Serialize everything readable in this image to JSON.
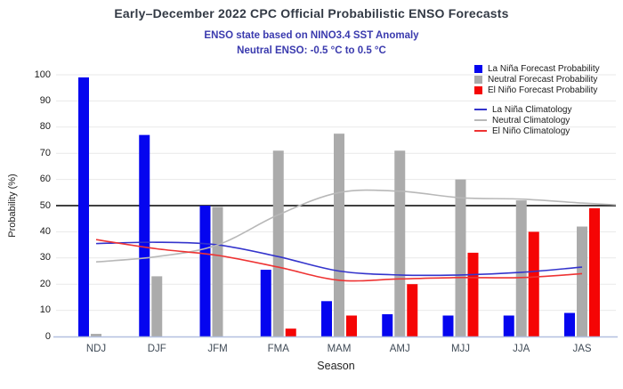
{
  "header": {
    "title": "Early–December 2022 CPC Official Probabilistic ENSO Forecasts",
    "subtitle1": "ENSO state based on NINO3.4 SST Anomaly",
    "subtitle2": "Neutral ENSO: -0.5 °C to 0.5 °C"
  },
  "chart_data": {
    "type": "bar",
    "title": "Early–December 2022 CPC Official Probabilistic ENSO Forecasts",
    "xlabel": "Season",
    "ylabel": "Probability (%)",
    "ylim": [
      0,
      100
    ],
    "yticks": [
      0,
      10,
      20,
      30,
      40,
      50,
      60,
      70,
      80,
      90,
      100
    ],
    "grid": "horizontal",
    "legend_position": "top-right",
    "reference_line": 50,
    "categories": [
      "NDJ",
      "DJF",
      "JFM",
      "FMA",
      "MAM",
      "AMJ",
      "MJJ",
      "JJA",
      "JAS"
    ],
    "bar_series": [
      {
        "name": "La Niña Forecast Probability",
        "color": "#0505ef",
        "values": [
          99,
          77,
          50,
          25.5,
          13.5,
          8.5,
          8,
          8,
          9
        ]
      },
      {
        "name": "Neutral Forecast Probability",
        "color": "#ababab",
        "values": [
          1,
          23,
          49.5,
          71,
          77.5,
          71,
          60,
          52,
          42
        ]
      },
      {
        "name": "El Niño Forecast Probability",
        "color": "#f50505",
        "values": [
          0,
          0,
          0,
          3,
          8,
          20,
          32,
          40,
          49
        ]
      }
    ],
    "line_series": [
      {
        "name": "La Niña Climatology",
        "color": "#3434cc",
        "values": [
          35.5,
          36,
          35,
          30.5,
          25,
          23.5,
          23.5,
          24.5,
          26.5
        ]
      },
      {
        "name": "Neutral Climatology",
        "color": "#b8b8b8",
        "values": [
          28.5,
          30.5,
          35,
          46.5,
          55,
          55.5,
          53,
          52.5,
          51
        ],
        "extend_right_value": 50.3
      },
      {
        "name": "El Niño Climatology",
        "color": "#ee3333",
        "values": [
          37,
          33.5,
          31,
          26.5,
          21.5,
          22,
          22.5,
          22.5,
          24
        ]
      }
    ]
  },
  "colors": {
    "grid": "#e9e9e9",
    "axis_line": "#b3c0e0",
    "reference_line": "#000000",
    "title": "#333a45",
    "subtitle": "#3a3aae"
  }
}
